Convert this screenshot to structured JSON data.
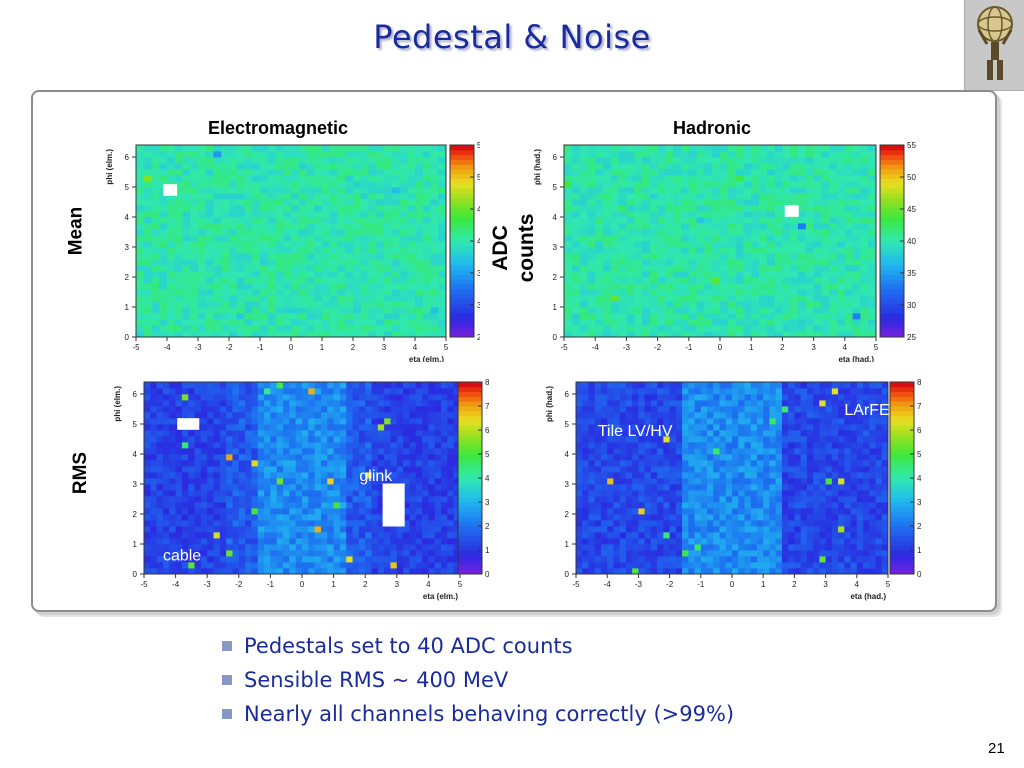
{
  "slide": {
    "title": "Pedestal & Noise",
    "page_number": "21",
    "bullets": [
      "Pedestals set to 40 ADC counts",
      "Sensible RMS ~ 400 MeV",
      "Nearly all channels behaving correctly (>99%)"
    ]
  },
  "figure": {
    "col_titles": [
      "Electromagnetic",
      "Hadronic"
    ],
    "row_labels": [
      "Mean",
      "RMS"
    ],
    "units_label_line1": "ADC",
    "units_label_line2": "counts"
  },
  "chart_data": [
    {
      "type": "heatmap",
      "panel": "mean-electromagnetic",
      "xlabel": "eta (elm.)",
      "ylabel": "phi (elm.)",
      "xlim": [
        -5,
        5
      ],
      "ylim": [
        0,
        6.4
      ],
      "x_ticks": [
        -5,
        -4,
        -3,
        -2,
        -1,
        0,
        1,
        2,
        3,
        4,
        5
      ],
      "y_ticks": [
        0,
        1,
        2,
        3,
        4,
        5,
        6
      ],
      "colorbar_range": [
        25,
        55
      ],
      "colorbar_ticks": [
        25,
        30,
        35,
        40,
        45,
        50,
        55
      ],
      "typical_value": 40,
      "marked_cells": [
        {
          "eta": -3.9,
          "phi": 4.9,
          "value": "empty"
        }
      ],
      "annotations": []
    },
    {
      "type": "heatmap",
      "panel": "mean-hadronic",
      "xlabel": "eta (had.)",
      "ylabel": "phi (had.)",
      "xlim": [
        -5,
        5
      ],
      "ylim": [
        0,
        6.4
      ],
      "x_ticks": [
        -5,
        -4,
        -3,
        -2,
        -1,
        0,
        1,
        2,
        3,
        4,
        5
      ],
      "y_ticks": [
        0,
        1,
        2,
        3,
        4,
        5,
        6
      ],
      "colorbar_range": [
        25,
        55
      ],
      "colorbar_ticks": [
        25,
        30,
        35,
        40,
        45,
        50,
        55
      ],
      "typical_value": 40,
      "marked_cells": [
        {
          "eta": 2.3,
          "phi": 4.2,
          "value": "empty"
        }
      ],
      "annotations": []
    },
    {
      "type": "heatmap",
      "panel": "rms-electromagnetic",
      "xlabel": "eta (elm.)",
      "ylabel": "phi (elm.)",
      "xlim": [
        -5,
        5
      ],
      "ylim": [
        0,
        6.4
      ],
      "x_ticks": [
        -5,
        -4,
        -3,
        -2,
        -1,
        0,
        1,
        2,
        3,
        4,
        5
      ],
      "y_ticks": [
        0,
        1,
        2,
        3,
        4,
        5,
        6
      ],
      "colorbar_range": [
        0,
        8
      ],
      "colorbar_ticks": [
        0,
        1,
        2,
        3,
        4,
        5,
        6,
        7,
        8
      ],
      "regions": [
        {
          "eta_range": [
            -5,
            -2.3
          ],
          "typical_value": 1.2
        },
        {
          "eta_range": [
            -2.3,
            -1.4
          ],
          "typical_value": 1.6
        },
        {
          "eta_range": [
            -1.4,
            1.4
          ],
          "typical_value": 2.4
        },
        {
          "eta_range": [
            1.4,
            2.3
          ],
          "typical_value": 1.6
        },
        {
          "eta_range": [
            2.3,
            5
          ],
          "typical_value": 1.2
        }
      ],
      "marked_cells": [
        {
          "eta": -3.6,
          "phi": 5.0,
          "value": "empty"
        },
        {
          "eta": 2.9,
          "phi": 2.2,
          "value": "empty",
          "phi_span": [
            1.6,
            3.0
          ]
        }
      ],
      "annotations": [
        "glink",
        "cable"
      ]
    },
    {
      "type": "heatmap",
      "panel": "rms-hadronic",
      "xlabel": "eta (had.)",
      "ylabel": "phi (had.)",
      "xlim": [
        -5,
        5
      ],
      "ylim": [
        0,
        6.4
      ],
      "x_ticks": [
        -5,
        -4,
        -3,
        -2,
        -1,
        0,
        1,
        2,
        3,
        4,
        5
      ],
      "y_ticks": [
        0,
        1,
        2,
        3,
        4,
        5,
        6
      ],
      "colorbar_range": [
        0,
        8
      ],
      "colorbar_ticks": [
        0,
        1,
        2,
        3,
        4,
        5,
        6,
        7,
        8
      ],
      "regions": [
        {
          "eta_range": [
            -5,
            -1.6
          ],
          "typical_value": 1.3
        },
        {
          "eta_range": [
            -1.6,
            1.6
          ],
          "typical_value": 2.4
        },
        {
          "eta_range": [
            1.6,
            5
          ],
          "typical_value": 1.3
        }
      ],
      "marked_cells": [],
      "annotations": [
        "Tile LV/HV",
        "LArFE"
      ]
    }
  ]
}
